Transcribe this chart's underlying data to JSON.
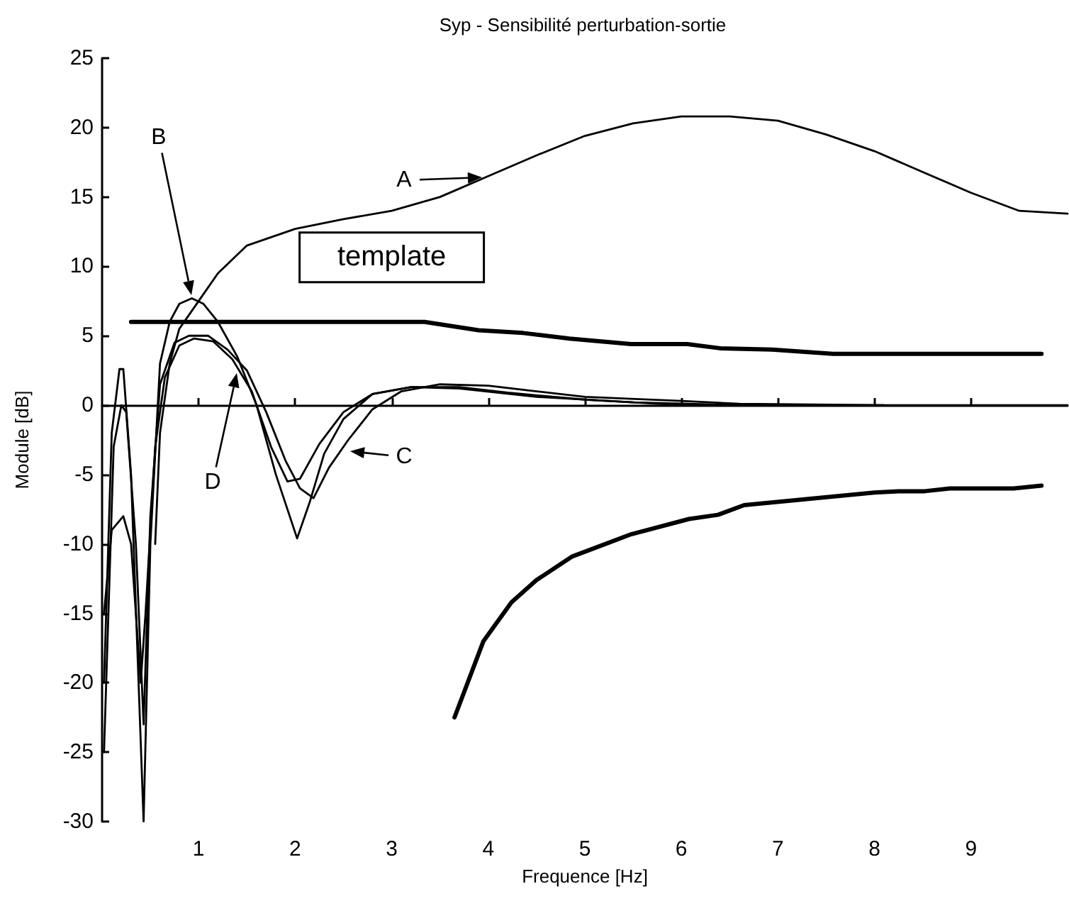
{
  "chart_data": {
    "type": "line",
    "title": "Syp - Sensibilité perturbation-sortie",
    "xlabel": "Frequence [Hz]",
    "ylabel": "Module [dB]",
    "xlim": [
      0,
      10
    ],
    "xticks": [
      1,
      2,
      3,
      4,
      5,
      6,
      7,
      8,
      9
    ],
    "ylim": [
      -30,
      25
    ],
    "yticks": [
      -30,
      -25,
      -20,
      -15,
      -10,
      -5,
      0,
      5,
      10,
      15,
      20,
      25
    ],
    "marker": "none",
    "line_style": "solid",
    "series": [
      {
        "color": "#000000",
        "x": [
          0.55,
          0.6,
          0.7,
          0.8,
          1.0,
          1.2,
          1.5,
          2,
          2.5,
          3,
          3.5,
          4,
          4.5,
          5,
          5.5,
          6,
          6.5,
          7,
          7.5,
          8,
          8.5,
          9,
          9.5,
          10
        ],
        "values": [
          -10,
          -2,
          3,
          5.5,
          7.5,
          9.5,
          11.5,
          12.7,
          13.4,
          14,
          15,
          16.5,
          18,
          19.4,
          20.3,
          20.8,
          20.8,
          20.5,
          19.5,
          18.3,
          16.8,
          15.3,
          14,
          13.8
        ]
      },
      {
        "color": "#000000",
        "x": [
          0.02,
          0.1,
          0.18,
          0.22,
          0.3,
          0.43,
          0.5,
          0.6,
          0.7,
          0.8,
          0.93,
          1.05,
          1.2,
          1.4,
          1.6,
          1.8,
          2.02,
          2.15,
          2.3,
          2.5,
          2.8,
          3.2,
          3.7,
          4.2,
          5,
          5.5,
          6,
          8,
          10
        ],
        "values": [
          -20,
          -2,
          2.6,
          2.6,
          -5,
          -30,
          -10,
          3,
          6,
          7.3,
          7.7,
          7.3,
          6,
          3.5,
          0,
          -5,
          -9.6,
          -7,
          -3.5,
          -1,
          0.8,
          1.3,
          1.3,
          0.9,
          0.4,
          0.2,
          0,
          0,
          0
        ]
      },
      {
        "color": "#000000",
        "x": [
          0.02,
          0.12,
          0.2,
          0.25,
          0.35,
          0.43,
          0.5,
          0.6,
          0.75,
          0.9,
          1.1,
          1.3,
          1.5,
          1.7,
          1.9,
          2.05,
          2.19,
          2.35,
          2.55,
          2.8,
          3.1,
          3.5,
          4,
          4.5,
          5,
          6,
          6.6,
          8.1
        ],
        "values": [
          -25,
          -3,
          0,
          -0.5,
          -10,
          -23,
          -8,
          1.5,
          4.5,
          5,
          5,
          4,
          2.5,
          -0.5,
          -4,
          -6,
          -6.7,
          -4.5,
          -2.5,
          -0.3,
          1,
          1.5,
          1.4,
          1,
          0.6,
          0.3,
          0.1,
          0
        ]
      },
      {
        "color": "#000000",
        "x": [
          0.02,
          0.1,
          0.22,
          0.3,
          0.4,
          0.45,
          0.55,
          0.65,
          0.8,
          0.95,
          1.15,
          1.35,
          1.55,
          1.75,
          1.92,
          2.05,
          2.25,
          2.5,
          2.8,
          3.2,
          3.7,
          4.5,
          5.5,
          6.6
        ],
        "values": [
          -15,
          -9,
          -8,
          -10,
          -20,
          -15,
          -3,
          2,
          4.3,
          4.8,
          4.6,
          3.3,
          1,
          -3,
          -5.5,
          -5.3,
          -2.8,
          -0.5,
          0.8,
          1.3,
          1.2,
          0.6,
          0.2,
          0
        ]
      },
      {
        "color": "#000000",
        "x": [
          0.3,
          1,
          2,
          3,
          3.34,
          3.9,
          4.36,
          4.84,
          5.48,
          6.06,
          6.4,
          6.94,
          7.57,
          8.5,
          9.73
        ],
        "values": [
          6,
          6,
          6,
          6,
          6,
          5.4,
          5.2,
          4.8,
          4.4,
          4.4,
          4.1,
          4,
          3.7,
          3.7,
          3.7
        ]
      },
      {
        "color": "#000000",
        "x": [
          3.65,
          3.95,
          4.24,
          4.5,
          4.87,
          5.48,
          6.08,
          6.38,
          6.65,
          8.0,
          8.25,
          8.52,
          8.78,
          9.44,
          9.73
        ],
        "values": [
          -22.5,
          -17,
          -14.2,
          -12.6,
          -10.9,
          -9.3,
          -8.2,
          -7.9,
          -7.2,
          -6.3,
          -6.2,
          -6.2,
          -6,
          -6,
          -5.8
        ]
      }
    ],
    "annotations": [
      "A",
      "B",
      "C",
      "D",
      "template"
    ]
  }
}
